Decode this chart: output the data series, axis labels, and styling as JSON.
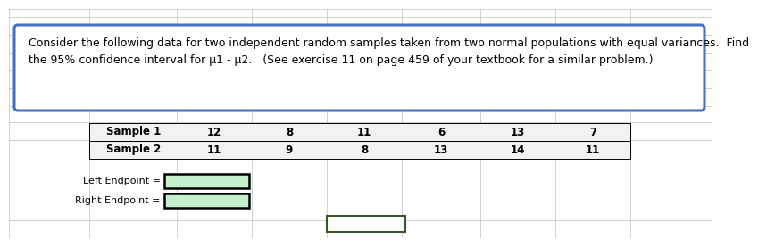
{
  "title_text": "Consider the following data for two independent random samples taken from two normal populations with equal variances.  Find\nthe 95% confidence interval for μ1 - μ2.   (See exercise 11 on page 459 of your textbook for a similar problem.)",
  "sample1_label": "Sample 1",
  "sample2_label": "Sample 2",
  "sample1_values": [
    "12",
    "8",
    "11",
    "6",
    "13",
    "7"
  ],
  "sample2_values": [
    "11",
    "9",
    "8",
    "13",
    "14",
    "11"
  ],
  "left_endpoint_label": "Left Endpoint =",
  "right_endpoint_label": "Right Endpoint =",
  "box_bg": "#ffffff",
  "box_border": "#4472C4",
  "grid_color": "#bfbfbf",
  "row_bg": "#f2f2f2",
  "input_fill": "#c6efce",
  "input_border": "#000000",
  "extra_box_fill": "#ffffff",
  "extra_box_border": "#375623",
  "fig_bg": "#ffffff",
  "font_size_title": 9.0,
  "font_size_table": 8.5,
  "font_size_labels": 8.0
}
